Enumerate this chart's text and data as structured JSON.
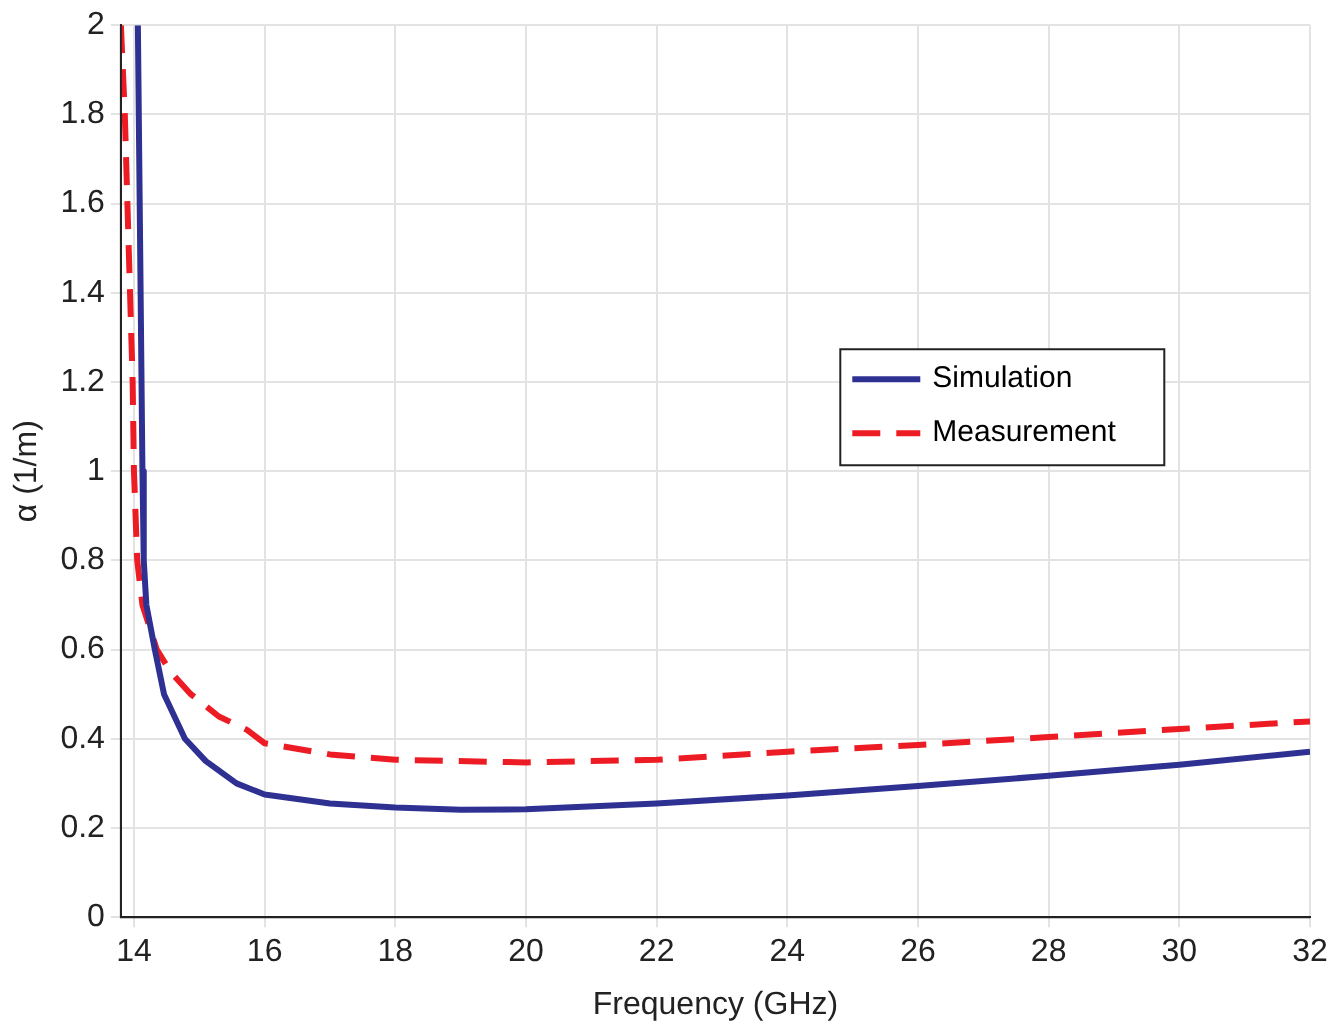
{
  "chart_data": {
    "type": "line",
    "xlabel": "Frequency (GHz)",
    "ylabel": "α (1/m)",
    "xlim": [
      13.8,
      32
    ],
    "xticks": [
      14,
      16,
      18,
      20,
      22,
      24,
      26,
      28,
      30,
      32
    ],
    "ylim": [
      0,
      2
    ],
    "yticks": [
      0,
      0.2,
      0.4,
      0.6,
      0.8,
      1,
      1.2,
      1.4,
      1.6,
      1.8,
      2
    ],
    "grid": true,
    "legend": "top right",
    "marker": "none",
    "series": [
      {
        "name": "Simulation",
        "color": "#2e3192",
        "line_style": "solid",
        "x": [
          14.06,
          14.13,
          14.15,
          14.19,
          14.32,
          14.46,
          14.78,
          15.1,
          15.57,
          16,
          17,
          18,
          19,
          20,
          22,
          24,
          26,
          28,
          30,
          32
        ],
        "values": [
          2,
          1,
          0.8,
          0.7,
          0.6,
          0.5,
          0.4,
          0.35,
          0.3,
          0.275,
          0.255,
          0.246,
          0.241,
          0.242,
          0.255,
          0.273,
          0.294,
          0.317,
          0.342,
          0.371
        ]
      },
      {
        "name": "Measurement",
        "color": "#ed1c24",
        "line_style": "dashed",
        "x": [
          13.8,
          13.86,
          13.9,
          13.94,
          13.98,
          14,
          14.05,
          14.13,
          14.24,
          14.35,
          14.56,
          14.87,
          15.3,
          15.73,
          16,
          17,
          18,
          20,
          22,
          24,
          26,
          28,
          30,
          32
        ],
        "values": [
          2,
          1.8,
          1.6,
          1.4,
          1.2,
          1,
          0.8,
          0.7,
          0.65,
          0.6,
          0.55,
          0.5,
          0.45,
          0.42,
          0.39,
          0.365,
          0.353,
          0.347,
          0.353,
          0.371,
          0.386,
          0.404,
          0.422,
          0.439
        ]
      }
    ]
  }
}
